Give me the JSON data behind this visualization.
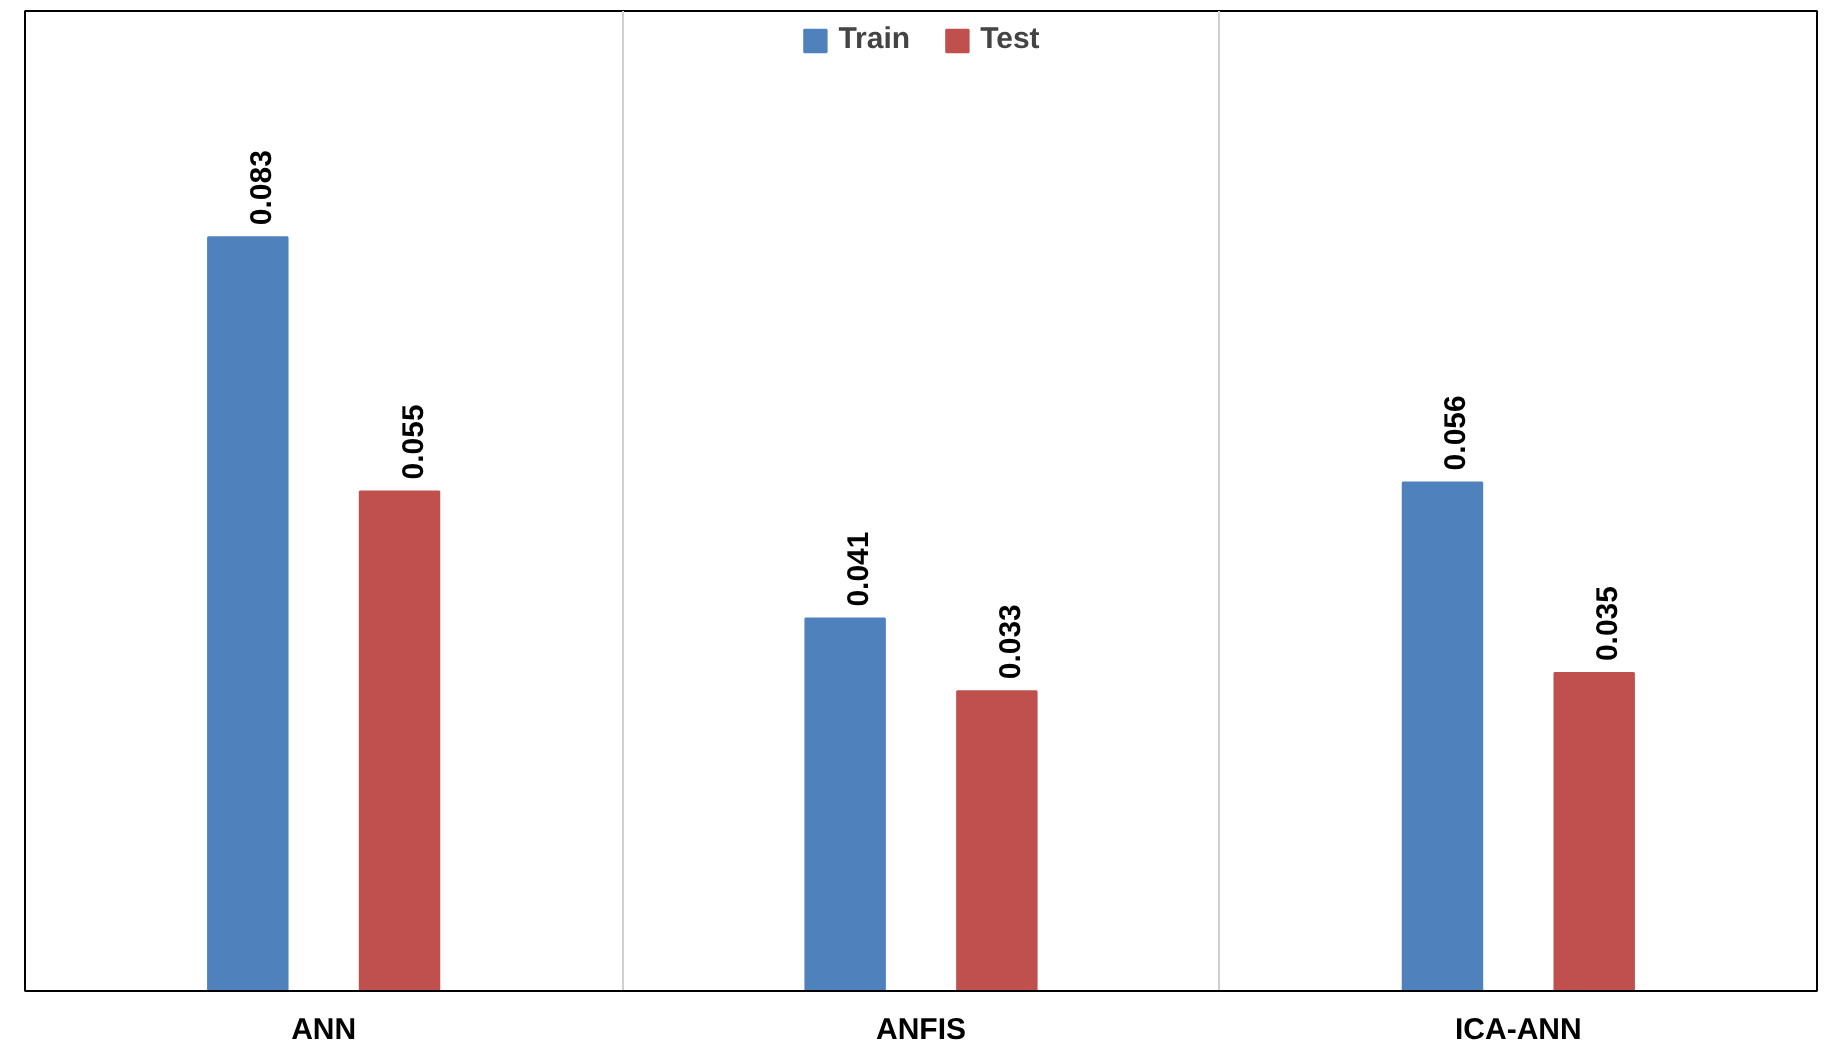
{
  "chart_data": {
    "type": "bar",
    "categories": [
      "ANN",
      "ANFIS",
      "ICA-ANN"
    ],
    "series": [
      {
        "name": "Train",
        "color": "#4f81bd",
        "values": [
          0.083,
          0.041,
          0.056
        ]
      },
      {
        "name": "Test",
        "color": "#c0504d",
        "values": [
          0.055,
          0.033,
          0.035
        ]
      }
    ],
    "data_labels": true,
    "legend": "top",
    "grid": "x",
    "tick_labels": "x"
  }
}
